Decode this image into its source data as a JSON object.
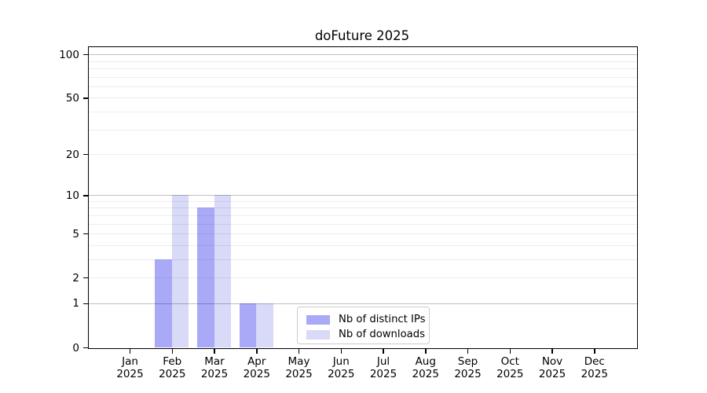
{
  "title": "doFuture 2025",
  "colors": {
    "distinct_ips": "#a9a9f8",
    "downloads": "#d9d9f8",
    "axis": "#000000",
    "grid_minor": "rgba(0,0,0,0.07)",
    "grid_major": "rgba(0,0,0,0.25)",
    "legend_border": "#cccccc",
    "background": "#ffffff"
  },
  "y_axis": {
    "tick_labels": [
      "0",
      "1",
      "2",
      "5",
      "10",
      "20",
      "50",
      "100"
    ],
    "tick_values": [
      0,
      1,
      2,
      5,
      10,
      20,
      50,
      100
    ],
    "minor_gridline_values": [
      3,
      4,
      6,
      7,
      8,
      9,
      30,
      40,
      60,
      70,
      80,
      90
    ],
    "major_gridline_values": [
      1,
      10,
      100
    ]
  },
  "x_axis": {
    "months": [
      "Jan",
      "Feb",
      "Mar",
      "Apr",
      "May",
      "Jun",
      "Jul",
      "Aug",
      "Sep",
      "Oct",
      "Nov",
      "Dec"
    ],
    "year": "2025"
  },
  "legend": {
    "items": [
      {
        "label": "Nb of distinct IPs",
        "color_key": "distinct_ips"
      },
      {
        "label": "Nb of downloads",
        "color_key": "downloads"
      }
    ]
  },
  "chart_data": {
    "type": "bar",
    "title": "doFuture 2025",
    "categories": [
      "Jan 2025",
      "Feb 2025",
      "Mar 2025",
      "Apr 2025",
      "May 2025",
      "Jun 2025",
      "Jul 2025",
      "Aug 2025",
      "Sep 2025",
      "Oct 2025",
      "Nov 2025",
      "Dec 2025"
    ],
    "series": [
      {
        "name": "Nb of distinct IPs",
        "values": [
          0,
          3,
          8,
          1,
          0,
          0,
          0,
          0,
          0,
          0,
          0,
          0
        ]
      },
      {
        "name": "Nb of downloads",
        "values": [
          0,
          10,
          10,
          1,
          0,
          0,
          0,
          0,
          0,
          0,
          0,
          0
        ]
      }
    ],
    "xlabel": "",
    "ylabel": "",
    "yscale": "log1p",
    "y_ticks": [
      0,
      1,
      2,
      5,
      10,
      20,
      50,
      100
    ],
    "ylim": [
      0,
      113
    ],
    "grid": true,
    "legend_position": "lower center inside"
  }
}
